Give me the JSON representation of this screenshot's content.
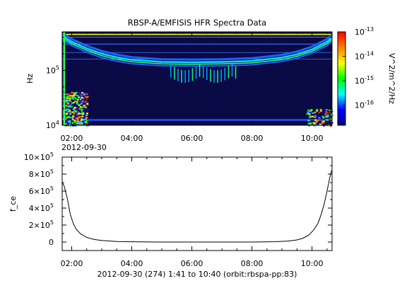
{
  "title": "RBSP-A/EMFISIS  HFR Spectra Data",
  "footer": "2012-09-30 (274) 1:41 to 10:40 (orbit:rbspa-pp:83)",
  "colors": {
    "background": "#ffffff",
    "spectrogram_background": "#0a0a46",
    "line": "#000000"
  },
  "chart_data": [
    {
      "type": "heatmap",
      "title": "RBSP-A/EMFISIS  HFR Spectra Data",
      "ylabel": "Hz",
      "y_scale": "log",
      "ylim": [
        10000,
        500000
      ],
      "y_ticks": [
        {
          "value": 100000,
          "base": "10",
          "exp": "5"
        },
        {
          "value": 10000,
          "base": "10",
          "exp": "4"
        }
      ],
      "x_ticks": [
        "02:00",
        "04:00",
        "06:00",
        "08:00",
        "10:00"
      ],
      "x_tick_hours": [
        2,
        4,
        6,
        8,
        10
      ],
      "xlim_hours": [
        1.683,
        10.667
      ],
      "x_date_label": "2012-09-30",
      "colorbar": {
        "label": "V^2/m^2/Hz",
        "scale": "log",
        "range": [
          1.5e-17,
          1e-13
        ],
        "ticks": [
          {
            "value": 1e-13,
            "base": "10",
            "exp": "-13"
          },
          {
            "value": 1e-14,
            "base": "10",
            "exp": "-14"
          },
          {
            "value": 1e-15,
            "base": "10",
            "exp": "-15"
          },
          {
            "value": 1e-16,
            "base": "10",
            "exp": "-16"
          }
        ],
        "colormap": [
          "#00007f",
          "#0000ff",
          "#00ffff",
          "#00ff00",
          "#ffff00",
          "#ff7f00",
          "#ff0000"
        ]
      },
      "features": {
        "horizontal_lines_hz": [
          450000,
          400000,
          300000,
          210000,
          160000
        ],
        "upper_band": {
          "hours": [
            1.7,
            2.0,
            2.5,
            3.0,
            3.5,
            4.0,
            5.0,
            6.0,
            7.0,
            8.0,
            9.0,
            9.5,
            10.0,
            10.5,
            10.67
          ],
          "hz": [
            420000,
            330000,
            250000,
            200000,
            172000,
            155000,
            142000,
            140000,
            142000,
            148000,
            170000,
            195000,
            240000,
            330000,
            400000
          ]
        },
        "lower_band_hz": 12500
      }
    },
    {
      "type": "line",
      "ylabel": "f_ce",
      "ylim": [
        -100000,
        1000000
      ],
      "xlim_hours": [
        1.683,
        10.667
      ],
      "y_ticks": [
        {
          "value": 1000000,
          "mant": "10×10",
          "exp": "5"
        },
        {
          "value": 800000,
          "mant": "8×10",
          "exp": "5"
        },
        {
          "value": 600000,
          "mant": "6×10",
          "exp": "5"
        },
        {
          "value": 400000,
          "mant": "4×10",
          "exp": "5"
        },
        {
          "value": 200000,
          "mant": "2×10",
          "exp": "5"
        },
        {
          "value": 0,
          "mant": "0",
          "exp": ""
        }
      ],
      "x_ticks": [
        "02:00",
        "04:00",
        "06:00",
        "08:00",
        "10:00"
      ],
      "x_tick_hours": [
        2,
        4,
        6,
        8,
        10
      ],
      "series": [
        {
          "x_hours": [
            1.683,
            1.75,
            1.85,
            1.95,
            2.05,
            2.15,
            2.3,
            2.5,
            2.75,
            3.0,
            3.5,
            4.0,
            5.0,
            6.0,
            7.0,
            8.0,
            8.8,
            9.2,
            9.5,
            9.7,
            9.9,
            10.05,
            10.2,
            10.3,
            10.4,
            10.5,
            10.58,
            10.64,
            10.667
          ],
          "y": [
            700000,
            660000,
            520000,
            330000,
            220000,
            150000,
            95000,
            55000,
            30000,
            18000,
            7000,
            3000,
            0,
            0,
            0,
            0,
            4000,
            12000,
            25000,
            45000,
            85000,
            140000,
            220000,
            320000,
            440000,
            600000,
            740000,
            830000,
            850000
          ]
        }
      ]
    }
  ]
}
